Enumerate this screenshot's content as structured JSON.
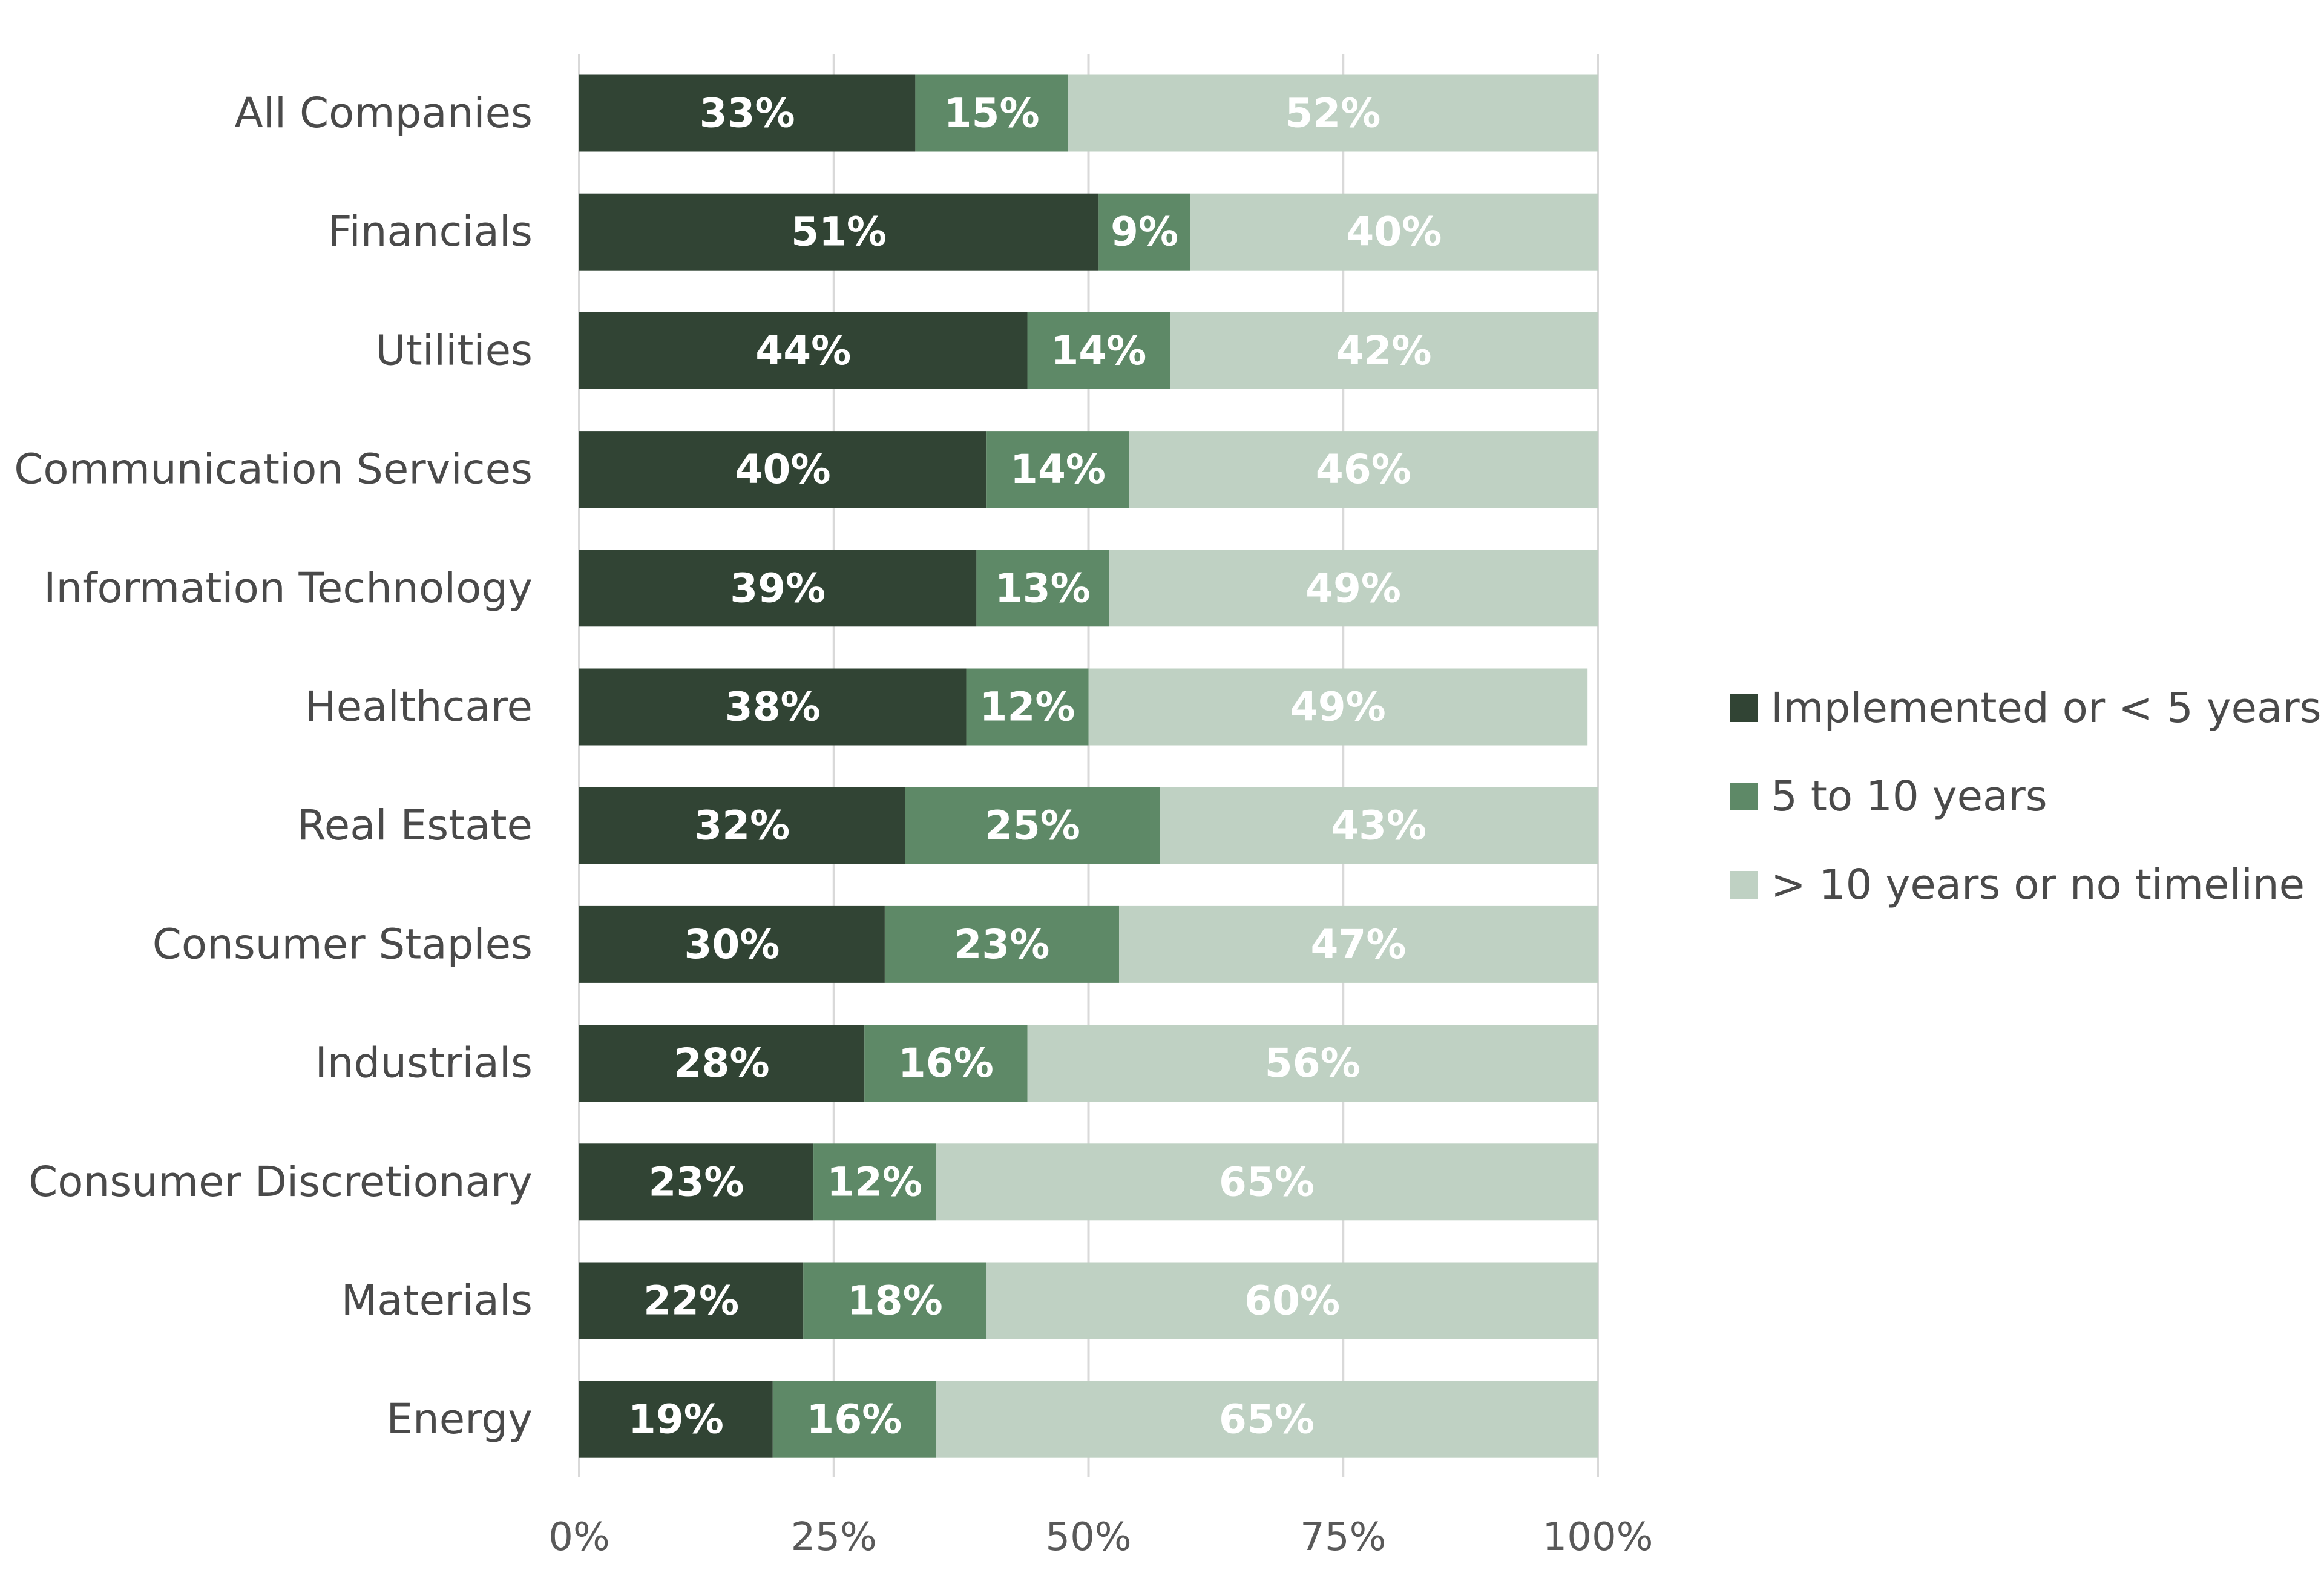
{
  "chart_data": {
    "type": "bar",
    "orientation": "horizontal",
    "stacked": true,
    "categories": [
      "All Companies",
      "Financials",
      "Utilities",
      "Communication Services",
      "Information Technology",
      "Healthcare",
      "Real Estate",
      "Consumer Staples",
      "Industrials",
      "Consumer Discretionary",
      "Materials",
      "Energy"
    ],
    "series": [
      {
        "name": "Implemented or < 5 years",
        "color": "#314434",
        "values": [
          33,
          51,
          44,
          40,
          39,
          38,
          32,
          30,
          28,
          23,
          22,
          19
        ],
        "labels": [
          "33%",
          "51%",
          "44%",
          "40%",
          "39%",
          "38%",
          "32%",
          "30%",
          "28%",
          "23%",
          "22%",
          "19%"
        ]
      },
      {
        "name": "5 to 10 years",
        "color": "#5e8967",
        "values": [
          15,
          9,
          14,
          14,
          13,
          12,
          25,
          23,
          16,
          12,
          18,
          16
        ],
        "labels": [
          "15%",
          "9%",
          "14%",
          "14%",
          "13%",
          "12%",
          "25%",
          "23%",
          "16%",
          "12%",
          "18%",
          "16%"
        ]
      },
      {
        "name": "> 10 years or no timeline",
        "color": "#bfd1c3",
        "values": [
          52,
          40,
          42,
          46,
          49,
          49,
          43,
          47,
          56,
          65,
          60,
          65
        ],
        "labels": [
          "52%",
          "40%",
          "42%",
          "46%",
          "49%",
          "49%",
          "43%",
          "47%",
          "56%",
          "65%",
          "60%",
          "65%"
        ]
      }
    ],
    "x_ticks": [
      0,
      25,
      50,
      75,
      100
    ],
    "x_tick_labels": [
      "0%",
      "25%",
      "50%",
      "75%",
      "100%"
    ],
    "xlim": [
      0,
      100
    ],
    "title": "",
    "xlabel": "",
    "ylabel": "",
    "grid": "vertical",
    "legend_position": "right"
  }
}
